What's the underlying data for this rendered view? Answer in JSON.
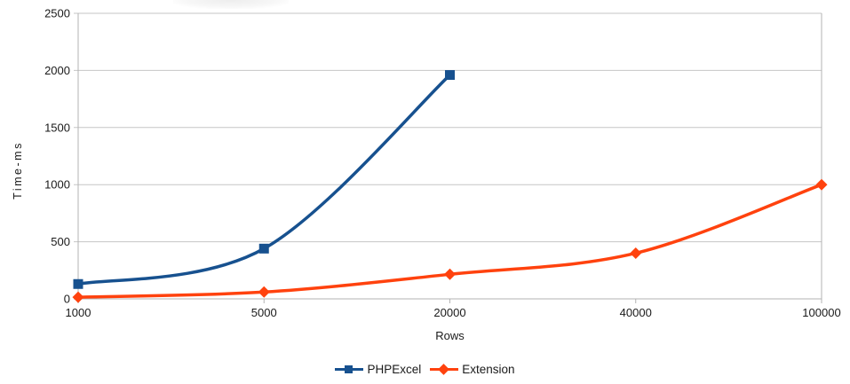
{
  "chart_data": {
    "type": "line",
    "title": "",
    "categories": [
      "1000",
      "5000",
      "20000",
      "40000",
      "100000"
    ],
    "series": [
      {
        "name": "PHPExcel",
        "color": "#17518F",
        "marker": "square",
        "values": [
          130,
          440,
          1960,
          null,
          null
        ]
      },
      {
        "name": "Extension",
        "color": "#FF420E",
        "marker": "diamond",
        "values": [
          15,
          60,
          215,
          400,
          1000
        ]
      }
    ],
    "xlabel": "Rows",
    "ylabel": "Time-ms",
    "ylim": [
      0,
      2500
    ],
    "y_ticks": [
      0,
      500,
      1000,
      1500,
      2000,
      2500
    ],
    "grid": "horizontal",
    "legend_position": "bottom",
    "smooth_lines": true
  },
  "colors": {
    "background": "#ffffff",
    "gridline": "#c6c6c6",
    "axis": "#b3b3b3",
    "text": "#1a1a1a"
  }
}
